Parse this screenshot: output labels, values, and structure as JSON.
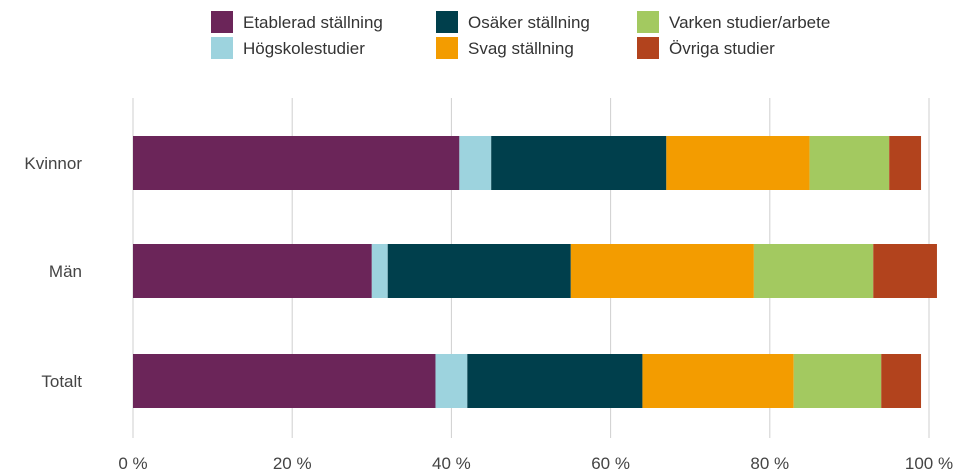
{
  "chart_data": {
    "type": "bar",
    "orientation": "horizontal",
    "stacked": true,
    "categories": [
      "Kvinnor",
      "Män",
      "Totalt"
    ],
    "series": [
      {
        "name": "Etablerad ställning",
        "color": "#6b2559",
        "values": [
          41,
          30,
          38
        ]
      },
      {
        "name": "Högskolestudier",
        "color": "#9dd3de",
        "values": [
          4,
          2,
          4
        ]
      },
      {
        "name": "Osäker ställning",
        "color": "#003f4c",
        "values": [
          22,
          23,
          22
        ]
      },
      {
        "name": "Svag ställning",
        "color": "#f39c00",
        "values": [
          18,
          23,
          19
        ]
      },
      {
        "name": "Varken studier/arbete",
        "color": "#a3c960",
        "values": [
          10,
          15,
          11
        ]
      },
      {
        "name": "Övriga studier",
        "color": "#b2431d",
        "values": [
          4,
          8,
          5
        ]
      }
    ],
    "xlim": [
      0,
      100
    ],
    "xticks": [
      0,
      20,
      40,
      60,
      80,
      100
    ],
    "xtick_labels": [
      "0 %",
      "20 %",
      "40 %",
      "60 %",
      "80 %",
      "100 %"
    ],
    "grid": "vertical",
    "legend_position": "top"
  }
}
